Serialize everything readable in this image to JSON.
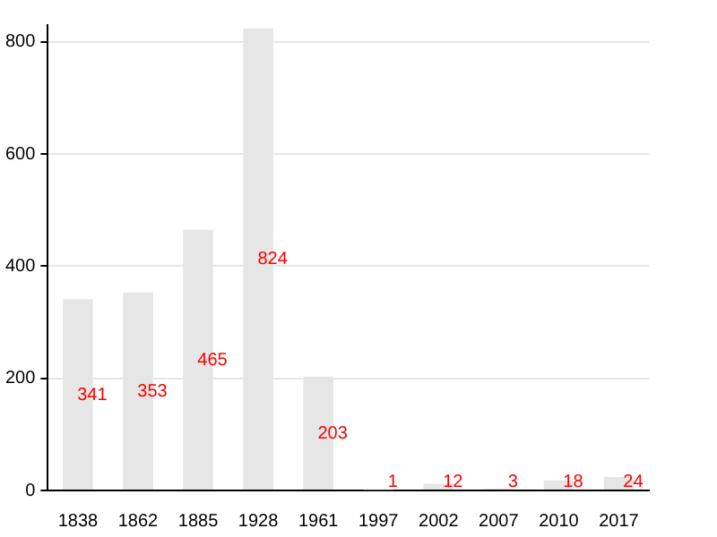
{
  "chart_data": {
    "type": "bar",
    "categories": [
      "1838",
      "1862",
      "1885",
      "1928",
      "1961",
      "1997",
      "2002",
      "2007",
      "2010",
      "2017"
    ],
    "values": [
      341,
      353,
      465,
      824,
      203,
      1,
      12,
      3,
      18,
      24
    ],
    "color": "#e6e6e6",
    "ylim": [
      0,
      830
    ],
    "yticks": [
      0,
      200,
      400,
      600,
      800
    ],
    "grid": "y",
    "data_labels": true
  }
}
